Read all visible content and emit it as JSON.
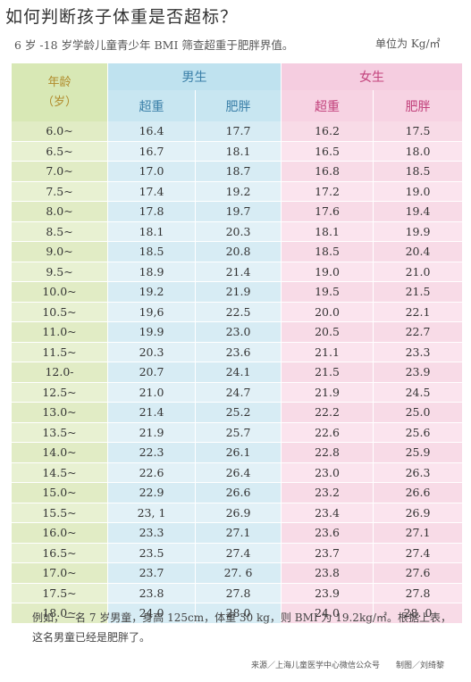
{
  "title": "如何判断孩子体重是否超标？",
  "subtitle": "6 岁 -18 岁学龄儿童青少年 BMI 筛查超重于肥胖界值。",
  "unit": "单位为 Kg/㎡",
  "table": {
    "age_header_line1": "年龄",
    "age_header_line2": "（岁）",
    "boy_header": "男生",
    "girl_header": "女生",
    "sub_overweight": "超重",
    "sub_obese": "肥胖",
    "rows": [
      {
        "age": "6.0~",
        "b_over": "16.4",
        "b_obese": "17.7",
        "g_over": "16.2",
        "g_obese": "17.5"
      },
      {
        "age": "6.5~",
        "b_over": "16.7",
        "b_obese": "18.1",
        "g_over": "16.5",
        "g_obese": "18.0"
      },
      {
        "age": "7.0~",
        "b_over": "17.0",
        "b_obese": "18.7",
        "g_over": "16.8",
        "g_obese": "18.5"
      },
      {
        "age": "7.5~",
        "b_over": "17.4",
        "b_obese": "19.2",
        "g_over": "17.2",
        "g_obese": "19.0"
      },
      {
        "age": "8.0~",
        "b_over": "17.8",
        "b_obese": "19.7",
        "g_over": "17.6",
        "g_obese": "19.4"
      },
      {
        "age": "8.5~",
        "b_over": "18.1",
        "b_obese": "20.3",
        "g_over": "18.1",
        "g_obese": "19.9"
      },
      {
        "age": "9.0~",
        "b_over": "18.5",
        "b_obese": "20.8",
        "g_over": "18.5",
        "g_obese": "20.4"
      },
      {
        "age": "9.5~",
        "b_over": "18.9",
        "b_obese": "21.4",
        "g_over": "19.0",
        "g_obese": "21.0"
      },
      {
        "age": "10.0~",
        "b_over": "19.2",
        "b_obese": "21.9",
        "g_over": "19.5",
        "g_obese": "21.5"
      },
      {
        "age": "10.5~",
        "b_over": "19,6",
        "b_obese": "22.5",
        "g_over": "20.0",
        "g_obese": "22.1"
      },
      {
        "age": "11.0~",
        "b_over": "19.9",
        "b_obese": "23.0",
        "g_over": "20.5",
        "g_obese": "22.7"
      },
      {
        "age": "11.5~",
        "b_over": "20.3",
        "b_obese": "23.6",
        "g_over": "21.1",
        "g_obese": "23.3"
      },
      {
        "age": "12.0-",
        "b_over": "20.7",
        "b_obese": "24.1",
        "g_over": "21.5",
        "g_obese": "23.9"
      },
      {
        "age": "12.5~",
        "b_over": "21.0",
        "b_obese": "24.7",
        "g_over": "21.9",
        "g_obese": "24.5"
      },
      {
        "age": "13.0~",
        "b_over": "21.4",
        "b_obese": "25.2",
        "g_over": "22.2",
        "g_obese": "25.0"
      },
      {
        "age": "13.5~",
        "b_over": "21.9",
        "b_obese": "25.7",
        "g_over": "22.6",
        "g_obese": "25.6"
      },
      {
        "age": "14.0~",
        "b_over": "22.3",
        "b_obese": "26.1",
        "g_over": "22.8",
        "g_obese": "25.9"
      },
      {
        "age": "14.5~",
        "b_over": "22.6",
        "b_obese": "26.4",
        "g_over": "23.0",
        "g_obese": "26.3"
      },
      {
        "age": "15.0~",
        "b_over": "22.9",
        "b_obese": "26.6",
        "g_over": "23.2",
        "g_obese": "26.6"
      },
      {
        "age": "15.5~",
        "b_over": "23, 1",
        "b_obese": "26.9",
        "g_over": "23.4",
        "g_obese": "26.9"
      },
      {
        "age": "16.0~",
        "b_over": "23.3",
        "b_obese": "27.1",
        "g_over": "23.6",
        "g_obese": "27.1"
      },
      {
        "age": "16.5~",
        "b_over": "23.5",
        "b_obese": "27.4",
        "g_over": "23.7",
        "g_obese": "27.4"
      },
      {
        "age": "17.0~",
        "b_over": "23.7",
        "b_obese": "27. 6",
        "g_over": "23.8",
        "g_obese": "27.6"
      },
      {
        "age": "17.5~",
        "b_over": "23.8",
        "b_obese": "27.8",
        "g_over": "23.9",
        "g_obese": "27.8"
      },
      {
        "age": "18.0~",
        "b_over": "24.0",
        "b_obese": "28.0",
        "g_over": "24.0",
        "g_obese": "28. 0"
      }
    ]
  },
  "example_text": "例如，一名 7 岁男童，身高 125cm，体重 30 kg，则 BMI 为 19.2kg/㎡。根据上表，这名男童已经是肥胖了。",
  "source_text": "来源／上海儿童医学中心微信公众号　　制图／刘绮黎"
}
